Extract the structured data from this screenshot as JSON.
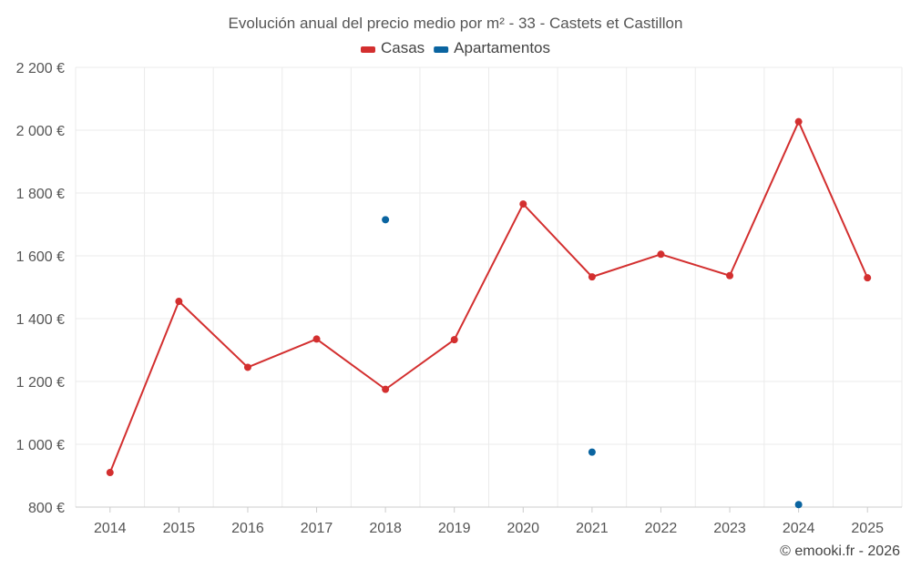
{
  "chart_data": {
    "type": "line",
    "title": "Evolución anual del precio medio por m² - 33 - Castets et Castillon",
    "categories": [
      "2014",
      "2015",
      "2016",
      "2017",
      "2018",
      "2019",
      "2020",
      "2021",
      "2022",
      "2023",
      "2024",
      "2025"
    ],
    "series": [
      {
        "name": "Casas",
        "color": "#d32f2f",
        "values": [
          910,
          1455,
          1245,
          1335,
          1175,
          1333,
          1765,
          1533,
          1605,
          1537,
          2027,
          1530
        ]
      },
      {
        "name": "Apartamentos",
        "color": "#0a64a0",
        "values": [
          null,
          null,
          null,
          null,
          1715,
          null,
          null,
          975,
          null,
          null,
          808,
          null
        ]
      }
    ],
    "ylim": [
      800,
      2200
    ],
    "yticks": [
      800,
      1000,
      1200,
      1400,
      1600,
      1800,
      2000,
      2200
    ],
    "ytick_labels": [
      "800 €",
      "1 000 €",
      "1 200 €",
      "1 400 €",
      "1 600 €",
      "1 800 €",
      "2 000 €",
      "2 200 €"
    ],
    "xlabel": "",
    "ylabel": "",
    "grid": true,
    "legend_position": "top-center",
    "credit": "© emooki.fr - 2026"
  }
}
